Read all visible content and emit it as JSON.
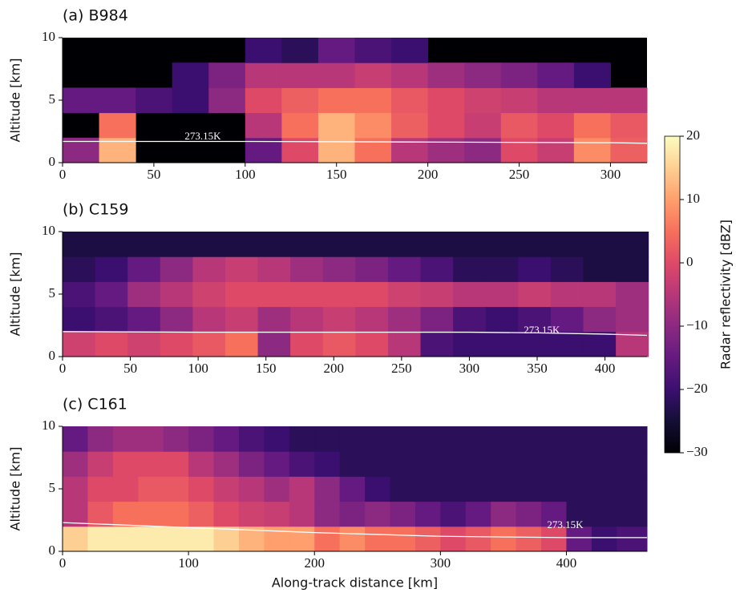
{
  "chart_data": [
    {
      "type": "heatmap",
      "title": "(a) B984",
      "ylabel": "Altitude [km]",
      "x_edges": [
        0,
        20,
        40,
        60,
        80,
        100,
        120,
        140,
        160,
        180,
        200,
        220,
        240,
        260,
        280,
        300,
        320
      ],
      "y_edges": [
        0,
        2,
        4,
        6,
        8,
        10
      ],
      "values": [
        [
          -10,
          12,
          null,
          null,
          null,
          -15,
          0,
          12,
          5,
          -5,
          -8,
          -10,
          0,
          -3,
          8,
          3
        ],
        [
          null,
          5,
          null,
          null,
          null,
          -5,
          5,
          12,
          8,
          3,
          0,
          -3,
          2,
          0,
          5,
          2
        ],
        [
          -15,
          -15,
          -18,
          -20,
          -10,
          0,
          3,
          5,
          5,
          2,
          0,
          -2,
          -3,
          -5,
          -5,
          -5
        ],
        [
          null,
          null,
          null,
          -20,
          -12,
          -5,
          -5,
          -5,
          -3,
          -5,
          -8,
          -10,
          -12,
          -15,
          -20,
          null
        ],
        [
          null,
          null,
          null,
          null,
          null,
          -20,
          -22,
          -15,
          -18,
          -20,
          null,
          null,
          null,
          null,
          null,
          null
        ]
      ],
      "xlim": [
        0,
        320
      ],
      "xticks": [
        0,
        50,
        100,
        150,
        200,
        250,
        300
      ],
      "ylim": [
        0,
        10
      ],
      "yticks": [
        0,
        5,
        10
      ],
      "isotherm": {
        "label": "273.15K",
        "x": [
          0,
          100,
          200,
          300,
          320
        ],
        "y": [
          1.7,
          1.7,
          1.65,
          1.6,
          1.55
        ]
      }
    },
    {
      "type": "heatmap",
      "title": "(b) C159",
      "ylabel": "Altitude [km]",
      "x_edges": [
        0,
        24,
        48,
        72,
        96,
        120,
        144,
        168,
        192,
        216,
        240,
        264,
        288,
        312,
        336,
        360,
        384,
        408,
        432
      ],
      "y_edges": [
        0,
        2,
        4,
        6,
        8,
        10
      ],
      "values": [
        [
          -2,
          0,
          -2,
          0,
          2,
          5,
          -10,
          0,
          2,
          0,
          -5,
          -18,
          -20,
          -20,
          -20,
          -20,
          -20,
          -5
        ],
        [
          -20,
          -18,
          -15,
          -10,
          -5,
          -3,
          -8,
          -5,
          -3,
          -5,
          -8,
          -12,
          -18,
          -20,
          -18,
          -15,
          -10,
          -8
        ],
        [
          -18,
          -15,
          -8,
          -5,
          -2,
          0,
          0,
          0,
          0,
          0,
          -2,
          -3,
          -5,
          -5,
          -3,
          -5,
          -5,
          -8
        ],
        [
          -22,
          -20,
          -15,
          -10,
          -5,
          -3,
          -5,
          -8,
          -10,
          -12,
          -15,
          -18,
          -22,
          -22,
          -20,
          -22,
          -24,
          -24
        ],
        [
          -24,
          -24,
          -24,
          -24,
          -24,
          -24,
          -24,
          -24,
          -24,
          -24,
          -24,
          -24,
          -24,
          -24,
          -24,
          -24,
          -24,
          -24
        ]
      ],
      "xlim": [
        0,
        431
      ],
      "xticks": [
        0,
        50,
        100,
        150,
        200,
        250,
        300,
        350,
        400
      ],
      "ylim": [
        0,
        10
      ],
      "yticks": [
        0,
        5,
        10
      ],
      "isotherm": {
        "label": "273.15K",
        "x": [
          0,
          100,
          200,
          300,
          350,
          400,
          431
        ],
        "y": [
          2.0,
          1.95,
          1.95,
          1.95,
          1.9,
          1.8,
          1.7
        ]
      }
    },
    {
      "type": "heatmap",
      "title": "(c) C161",
      "ylabel": "Altitude [km]",
      "xlabel": "Along-track distance [km]",
      "x_edges": [
        0,
        20,
        40,
        60,
        80,
        100,
        120,
        140,
        160,
        180,
        200,
        220,
        240,
        260,
        280,
        300,
        320,
        340,
        360,
        380,
        400,
        420,
        440,
        464
      ],
      "y_edges": [
        0,
        2,
        4,
        6,
        8,
        10
      ],
      "values": [
        [
          15,
          18,
          18,
          18,
          18,
          18,
          15,
          12,
          10,
          10,
          5,
          8,
          5,
          5,
          3,
          0,
          2,
          5,
          3,
          0,
          -15,
          -20,
          -18
        ],
        [
          -5,
          2,
          5,
          5,
          5,
          3,
          0,
          -2,
          -3,
          -5,
          -10,
          -12,
          -10,
          -12,
          -15,
          -18,
          -15,
          -10,
          -12,
          -15,
          -22,
          -22,
          -22
        ],
        [
          -5,
          0,
          0,
          2,
          2,
          0,
          -3,
          -5,
          -8,
          -5,
          -10,
          -15,
          -20,
          -22,
          -22,
          -22,
          -22,
          -22,
          -22,
          -22,
          -22,
          -22,
          -22
        ],
        [
          -8,
          -3,
          0,
          0,
          0,
          -5,
          -8,
          -12,
          -15,
          -18,
          -20,
          -22,
          -22,
          -22,
          -22,
          -22,
          -22,
          -22,
          -22,
          -22,
          -22,
          -22,
          -22
        ],
        [
          -15,
          -10,
          -8,
          -8,
          -10,
          -12,
          -15,
          -18,
          -20,
          -22,
          -22,
          -22,
          -22,
          -22,
          -22,
          -22,
          -22,
          -22,
          -22,
          -22,
          -22,
          -22,
          -22
        ]
      ],
      "xlim": [
        0,
        464
      ],
      "xticks": [
        0,
        100,
        200,
        300,
        400
      ],
      "ylim": [
        0,
        10
      ],
      "yticks": [
        0,
        5,
        10
      ],
      "isotherm": {
        "label": "273.15K",
        "x": [
          0,
          100,
          200,
          300,
          400,
          464
        ],
        "y": [
          2.3,
          1.9,
          1.5,
          1.2,
          1.1,
          1.1
        ]
      }
    },
    {
      "type": "colorbar",
      "label": "Radar reflectivity [dBZ]",
      "colormap": "magma",
      "lim": [
        -30,
        20
      ],
      "ticks": [
        {
          "value": -30,
          "label": "−30"
        },
        {
          "value": -20,
          "label": "−20"
        },
        {
          "value": -10,
          "label": "−10"
        },
        0,
        10,
        20
      ]
    }
  ]
}
